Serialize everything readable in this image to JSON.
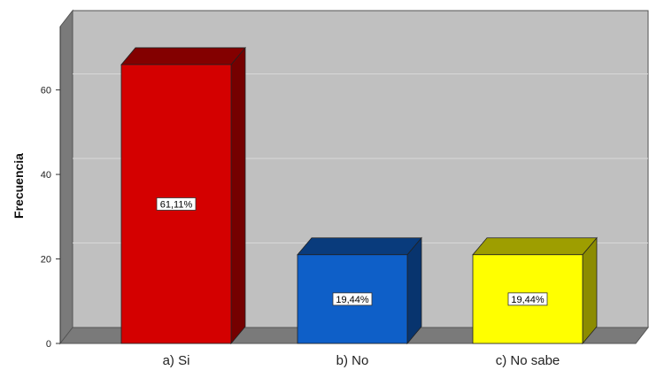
{
  "chart_data": {
    "type": "bar",
    "categories": [
      "a) Si",
      "b) No",
      "c) No sabe"
    ],
    "values": [
      66,
      21,
      21
    ],
    "labels": [
      "61,11%",
      "19,44%",
      "19,44%"
    ],
    "colors": [
      "#d40000",
      "#0e5fc8",
      "#ffff00"
    ],
    "title": "",
    "xlabel": "",
    "ylabel": "Frecuencia",
    "ylim": [
      0,
      75
    ],
    "yticks": [
      0,
      20,
      40,
      60
    ],
    "grid": true,
    "legend": "none",
    "style": "3d"
  }
}
